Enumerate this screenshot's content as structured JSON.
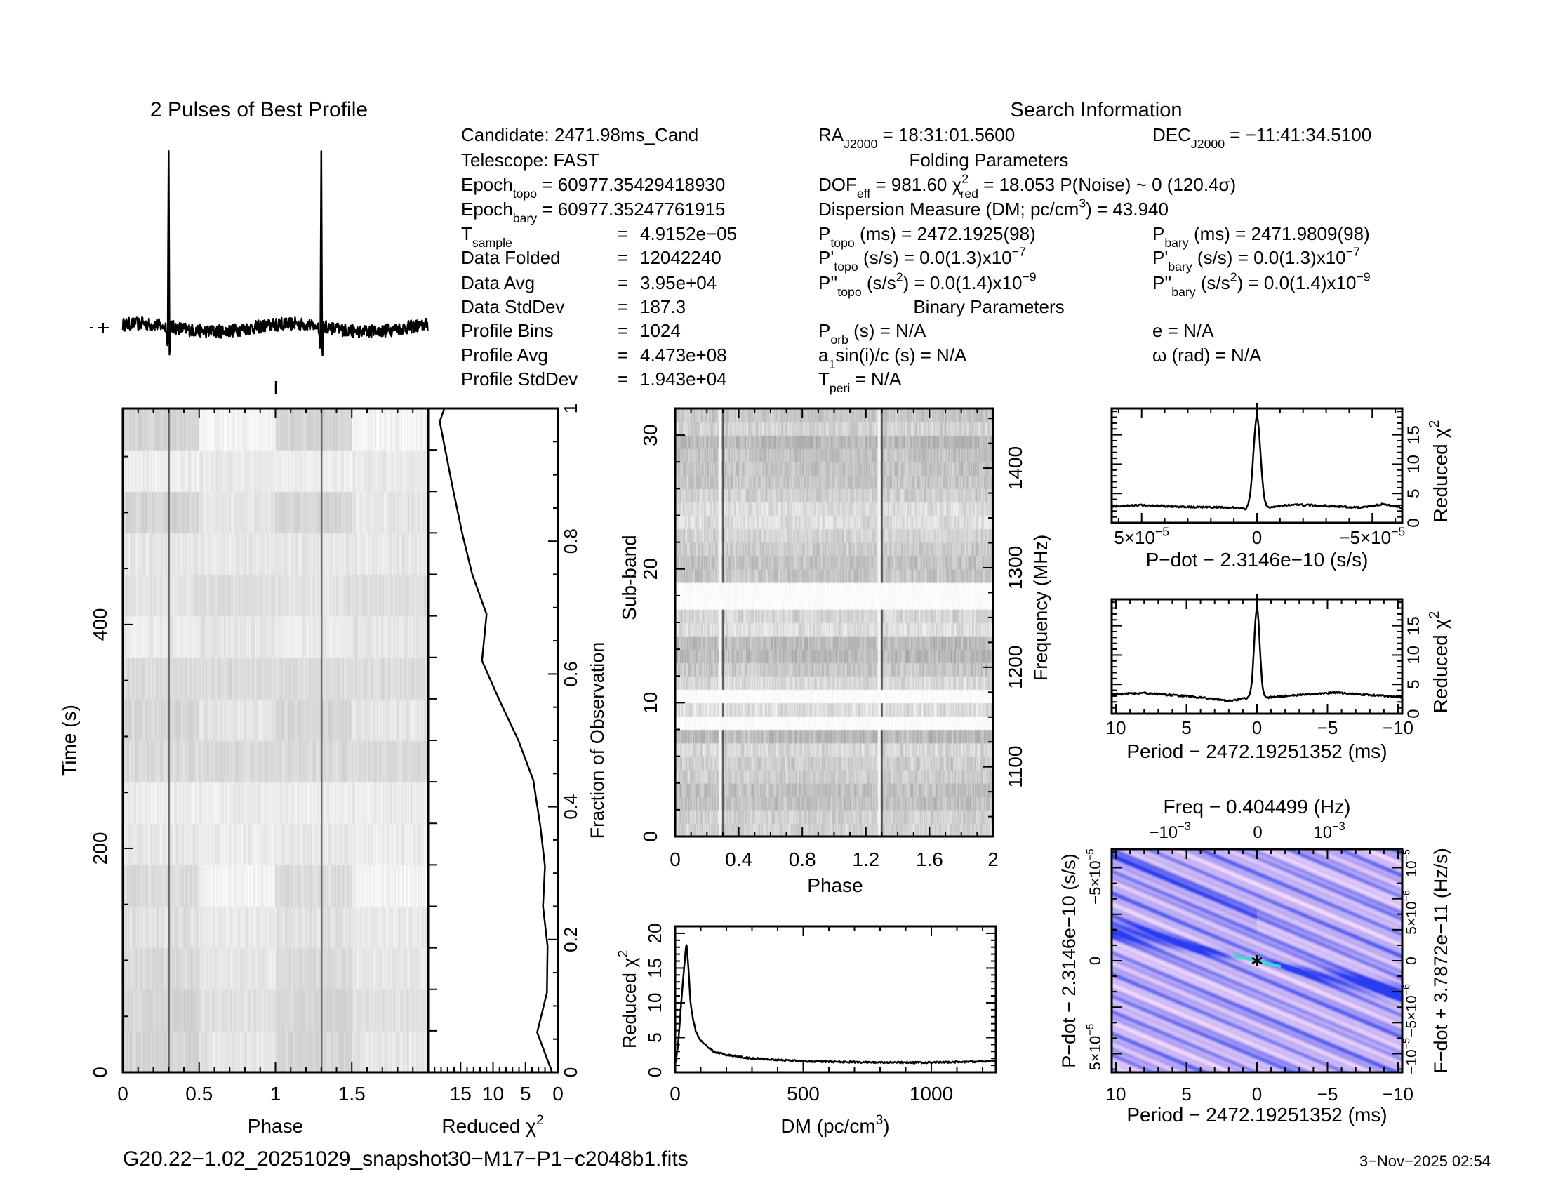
{
  "info": {
    "eq": "=",
    "search_title": "Search Information",
    "folding_title": "Folding Parameters",
    "binary_title": "Binary Parameters",
    "candidate": [
      {
        "t": "Candidate:  2471.98ms_Cand"
      }
    ],
    "telescope": [
      {
        "t": "Telescope:  FAST"
      }
    ],
    "epoch_topo": [
      {
        "t": "Epoch"
      },
      {
        "sub": "topo"
      },
      {
        "t": " = 60977.35429418930"
      }
    ],
    "epoch_bary": [
      {
        "t": "Epoch"
      },
      {
        "sub": "bary"
      },
      {
        "t": " = 60977.35247761915"
      }
    ],
    "aligned_rows": [
      {
        "label": [
          {
            "t": "T"
          },
          {
            "sub": "sample"
          }
        ],
        "value": "4.9152e−05"
      },
      {
        "label": [
          {
            "t": "Data Folded"
          }
        ],
        "value": "12042240"
      },
      {
        "label": [
          {
            "t": "Data Avg"
          }
        ],
        "value": "3.95e+04"
      },
      {
        "label": [
          {
            "t": "Data StdDev"
          }
        ],
        "value": "187.3"
      },
      {
        "label": [
          {
            "t": "Profile Bins"
          }
        ],
        "value": "1024"
      },
      {
        "label": [
          {
            "t": "Profile Avg"
          }
        ],
        "value": "4.473e+08"
      },
      {
        "label": [
          {
            "t": "Profile StdDev"
          }
        ],
        "value": "1.943e+04"
      }
    ],
    "ra": [
      {
        "t": "RA"
      },
      {
        "sub": "J2000"
      },
      {
        "t": " = 18:31:01.5600"
      }
    ],
    "dec": [
      {
        "t": "DEC"
      },
      {
        "sub": "J2000"
      },
      {
        "t": " = −11:41:34.5100"
      }
    ],
    "dof": [
      {
        "t": "DOF"
      },
      {
        "sub": "eff"
      },
      {
        "t": " = 981.60  χ"
      },
      {
        "sup": "2"
      },
      {
        "sub": "red"
      },
      {
        "t": " = 18.053  P(Noise) ~ 0   (120.4σ)"
      }
    ],
    "dm": [
      {
        "t": "Dispersion Measure (DM; pc/cm"
      },
      {
        "sup": "3"
      },
      {
        "t": ") = 43.940"
      }
    ],
    "p_topo": [
      {
        "t": "P"
      },
      {
        "sub": "topo"
      },
      {
        "t": " (ms) =  2472.1925(98)"
      }
    ],
    "pd_topo": [
      {
        "t": "P'"
      },
      {
        "sub": "topo"
      },
      {
        "t": " (s/s) = 0.0(1.3)x10"
      },
      {
        "sup": "−7"
      }
    ],
    "pdd_topo": [
      {
        "t": "P''"
      },
      {
        "sub": "topo"
      },
      {
        "t": " (s/s"
      },
      {
        "sup": "2"
      },
      {
        "t": ") = 0.0(1.4)x10"
      },
      {
        "sup": "−9"
      }
    ],
    "p_bary": [
      {
        "t": "P"
      },
      {
        "sub": "bary"
      },
      {
        "t": " (ms) =  2471.9809(98)"
      }
    ],
    "pd_bary": [
      {
        "t": "P'"
      },
      {
        "sub": "bary"
      },
      {
        "t": " (s/s) = 0.0(1.3)x10"
      },
      {
        "sup": "−7"
      }
    ],
    "pdd_bary": [
      {
        "t": "P''"
      },
      {
        "sub": "bary"
      },
      {
        "t": " (s/s"
      },
      {
        "sup": "2"
      },
      {
        "t": ") = 0.0(1.4)x10"
      },
      {
        "sup": "−9"
      }
    ],
    "p_orb": [
      {
        "t": "P"
      },
      {
        "sub": "orb"
      },
      {
        "t": " (s) = N/A"
      }
    ],
    "asini": [
      {
        "t": "a"
      },
      {
        "sub": "1"
      },
      {
        "t": "sin(i)/c (s) = N/A"
      }
    ],
    "t_peri": [
      {
        "t": "T"
      },
      {
        "sub": "peri"
      },
      {
        "t": " = N/A"
      }
    ],
    "ecc": [
      {
        "t": "e = N/A"
      }
    ],
    "omega": [
      {
        "t": "ω (rad) = N/A"
      }
    ]
  },
  "footer": {
    "filename": "G20.22−1.02_20251029_snapshot30−M17−P1−c2048b1.fits",
    "date": "3−Nov−2025 02:54"
  },
  "chart_data": [
    {
      "type": "line",
      "title": "2 Pulses of Best Profile",
      "xlim": [
        0,
        2
      ],
      "pulse_phases": [
        0.3,
        1.3
      ],
      "peak_relative": 1.0,
      "baseline_relative": 0.0,
      "dip_relative": -0.17
    },
    {
      "type": "heatmap",
      "xlabel": "Phase",
      "ylabel": "Time (s)",
      "xlim": [
        0,
        2
      ],
      "ylim": [
        0,
        593
      ],
      "xticks": [
        0,
        0.5,
        1,
        1.5
      ],
      "xtick_labels": [
        "0",
        "0.5",
        "1",
        "1.5"
      ],
      "yticks": [
        0,
        200,
        400
      ],
      "ytick_labels": [
        "0",
        "200",
        "400"
      ],
      "n_subints": 16,
      "pulse_phases": [
        0.3,
        1.3
      ]
    },
    {
      "type": "line",
      "xlabel": "Reduced χ",
      "xlabel_sup": "2",
      "ylabel": "Fraction of Observation",
      "xlim": [
        20,
        0
      ],
      "ylim": [
        0,
        1
      ],
      "xticks": [
        15,
        10,
        5,
        0
      ],
      "xtick_labels": [
        "15",
        "10",
        "5",
        "0"
      ],
      "yticks": [
        0,
        0.2,
        0.4,
        0.6,
        0.8,
        1
      ],
      "ytick_labels": [
        "0",
        "0.2",
        "0.4",
        "0.6",
        "0.8",
        "1"
      ],
      "x": [
        0.9,
        3.2,
        1.7,
        1.6,
        2.3,
        2.0,
        2.7,
        3.8,
        6.1,
        9.0,
        11.7,
        11.0,
        13.2,
        14.7,
        16.2,
        18.2
      ],
      "y": [
        0.0,
        0.06,
        0.12,
        0.19,
        0.25,
        0.31,
        0.37,
        0.44,
        0.5,
        0.56,
        0.62,
        0.69,
        0.75,
        0.81,
        0.88,
        0.98
      ]
    },
    {
      "type": "heatmap",
      "xlabel": "Phase",
      "ylabel": "Sub-band",
      "y2label": "Frequency (MHz)",
      "xlim": [
        0,
        2
      ],
      "ylim": [
        0,
        32
      ],
      "y2lim": [
        1030,
        1460
      ],
      "xticks": [
        0,
        0.4,
        0.8,
        1.2,
        1.6,
        2
      ],
      "xtick_labels": [
        "0",
        "0.4",
        "0.8",
        "1.2",
        "1.6",
        "2"
      ],
      "yticks": [
        0,
        10,
        20,
        30
      ],
      "ytick_labels": [
        "0",
        "10",
        "20",
        "30"
      ],
      "y2ticks": [
        1100,
        1200,
        1300,
        1400
      ],
      "y2tick_labels": [
        "1100",
        "1200",
        "1300",
        "1400"
      ],
      "masked_subbands": [
        8,
        10,
        17,
        18
      ],
      "pulse_phases": [
        0.3,
        1.3
      ]
    },
    {
      "type": "line",
      "xlabel": "DM (pc/cm",
      "xlabel_sup": "3",
      "xlabel_end": ")",
      "ylabel": "Reduced χ",
      "ylabel_sup": "2",
      "xlim": [
        0,
        1252
      ],
      "ylim": [
        0,
        21
      ],
      "xticks": [
        0,
        500,
        1000
      ],
      "xtick_labels": [
        "0",
        "500",
        "1000"
      ],
      "yticks": [
        0,
        5,
        10,
        15,
        20
      ],
      "ytick_labels": [
        "0",
        "5",
        "10",
        "15",
        "20"
      ],
      "x": [
        0,
        10,
        20,
        30,
        44,
        50,
        60,
        70,
        80,
        100,
        150,
        200,
        300,
        500,
        800,
        1000,
        1252
      ],
      "y": [
        1.0,
        3.5,
        8,
        13,
        18.8,
        16,
        10,
        7.5,
        6,
        4.5,
        3,
        2.5,
        2,
        1.6,
        1.4,
        1.4,
        1.6
      ]
    },
    {
      "type": "line",
      "xlabel": "P−dot − 2.3146e−10 (s/s)",
      "ylabel": "Reduced χ",
      "ylabel_sup": "2",
      "x_unit": 1e-05,
      "xlim": [
        6.3,
        -6.3
      ],
      "ylim": [
        0,
        19.5
      ],
      "xticks": [
        5,
        0,
        -5
      ],
      "xtick_labels": [
        [
          {
            "t": "5×10"
          },
          {
            "sup": "−5"
          }
        ],
        [
          {
            "t": "0"
          }
        ],
        [
          {
            "t": "−5×10"
          },
          {
            "sup": "−5"
          }
        ]
      ],
      "yticks": [
        0,
        5,
        10,
        15
      ],
      "ytick_labels": [
        "0",
        "5",
        "10",
        "15"
      ],
      "peak": 18.0,
      "x": [
        6.3,
        5,
        3,
        1,
        0.5,
        -0.5,
        -1.5,
        -3,
        -4.5,
        -5.5,
        -6.3
      ],
      "y": [
        2.8,
        3.0,
        2.7,
        2.6,
        2.3,
        2.6,
        3.1,
        2.9,
        2.6,
        3.2,
        2.6
      ]
    },
    {
      "type": "line",
      "xlabel": "Period − 2472.19251352 (ms)",
      "ylabel": "Reduced χ",
      "ylabel_sup": "2",
      "xlim": [
        10.3,
        -10.3
      ],
      "ylim": [
        0,
        19.5
      ],
      "xticks": [
        10,
        5,
        0,
        -5,
        -10
      ],
      "xtick_labels": [
        "10",
        "5",
        "0",
        "−5",
        "−10"
      ],
      "yticks": [
        0,
        5,
        10,
        15
      ],
      "ytick_labels": [
        "0",
        "5",
        "10",
        "15"
      ],
      "peak": 18.0,
      "x": [
        10.3,
        8,
        5,
        3,
        2,
        0.6,
        -0.6,
        -2,
        -5.5,
        -8,
        -10.3
      ],
      "y": [
        3.3,
        3.5,
        3.0,
        2.5,
        2.2,
        2.7,
        2.7,
        3.0,
        3.6,
        3.2,
        2.8
      ]
    },
    {
      "type": "heatmap",
      "xlabel": "Period − 2472.19251352 (ms)",
      "ylabel": "P−dot − 2.3146e−10 (s/s)",
      "x2label": "Freq − 0.404499 (Hz)",
      "y2label": "F−dot + 3.7872e−11 (Hz/s)",
      "xlim": [
        10.3,
        -10.3
      ],
      "xticks": [
        10,
        5,
        0,
        -5,
        -10
      ],
      "xtick_labels": [
        "10",
        "5",
        "0",
        "−5",
        "−10"
      ],
      "x2ticks": [
        -0.001,
        0,
        0.001
      ],
      "x2tick_labels": [
        [
          {
            "t": "−10"
          },
          {
            "sup": "−3"
          }
        ],
        [
          {
            "t": "0"
          }
        ],
        [
          {
            "t": "10"
          },
          {
            "sup": "−3"
          }
        ]
      ],
      "yticks": [
        -5e-05,
        0,
        5e-05
      ],
      "ytick_labels": [
        [
          {
            "t": "−5×10"
          },
          {
            "sup": "−5"
          }
        ],
        [
          {
            "t": "0"
          }
        ],
        [
          {
            "t": "5×10"
          },
          {
            "sup": "−5"
          }
        ]
      ],
      "y2ticks": [
        1e-05,
        5e-06,
        0,
        -5e-06,
        -1e-05
      ],
      "y2tick_labels": [
        [
          {
            "t": "10"
          },
          {
            "sup": "−5"
          }
        ],
        [
          {
            "t": "5×10"
          },
          {
            "sup": "−6"
          }
        ],
        [
          {
            "t": "0"
          }
        ],
        [
          {
            "t": "−5×10"
          },
          {
            "sup": "−6"
          }
        ],
        [
          {
            "t": "−10"
          },
          {
            "sup": "−5"
          }
        ]
      ],
      "best_fit": [
        0,
        0
      ],
      "colors": {
        "low": "#fbe0fb",
        "mid": "#b8a8f4",
        "high": "#2a3cf0",
        "peak": "#30e0d0"
      }
    }
  ]
}
